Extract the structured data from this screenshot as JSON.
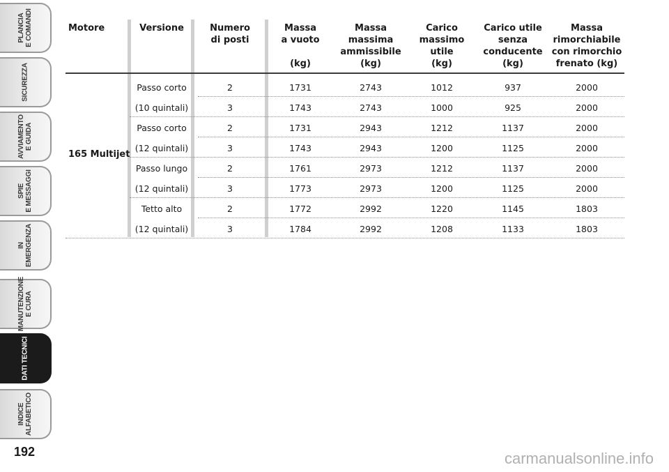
{
  "side_tabs": [
    {
      "label": "PLANCIA\nE COMANDI",
      "active": false
    },
    {
      "label": "SICUREZZA",
      "active": false
    },
    {
      "label": "AVVIAMENTO\nE GUIDA",
      "active": false
    },
    {
      "label": "SPIE\nE MESSAGGI",
      "active": false
    },
    {
      "label": "IN\nEMERGENZA",
      "active": false
    },
    {
      "label": "MANUTENZIONE\nE CURA",
      "active": false
    },
    {
      "label": "DATI TECNICI",
      "active": true
    },
    {
      "label": "INDICE\nALFABETICO",
      "active": false
    }
  ],
  "page_number": "192",
  "table": {
    "headers": [
      "Motore",
      "Versione",
      "Numero\ndi posti",
      "Massa\na vuoto\n\n(kg)",
      "Massa\nmassima\nammissibile\n(kg)",
      "Carico\nmassimo\nutile\n(kg)",
      "Carico utile\nsenza\nconducente\n(kg)",
      "Massa\nrimorchiabile\ncon rimorchio\nfrenato (kg)"
    ],
    "motore": "165 Multijet",
    "versions": [
      {
        "line1": "Passo corto",
        "line2": "(10 quintali)"
      },
      {
        "line1": "Passo corto",
        "line2": "(12 quintali)"
      },
      {
        "line1": "Passo lungo",
        "line2": "(12 quintali)"
      },
      {
        "line1": "Tetto alto",
        "line2": "(12 quintali)"
      }
    ],
    "rows": [
      [
        "2",
        "1731",
        "2743",
        "1012",
        "937",
        "2000"
      ],
      [
        "3",
        "1743",
        "2743",
        "1000",
        "925",
        "2000"
      ],
      [
        "2",
        "1731",
        "2943",
        "1212",
        "1137",
        "2000"
      ],
      [
        "3",
        "1743",
        "2943",
        "1200",
        "1125",
        "2000"
      ],
      [
        "2",
        "1761",
        "2973",
        "1212",
        "1137",
        "2000"
      ],
      [
        "3",
        "1773",
        "2973",
        "1200",
        "1125",
        "2000"
      ],
      [
        "2",
        "1772",
        "2992",
        "1220",
        "1145",
        "1803"
      ],
      [
        "3",
        "1784",
        "2992",
        "1208",
        "1133",
        "1803"
      ]
    ]
  },
  "watermark": "carmanualsonline.info"
}
